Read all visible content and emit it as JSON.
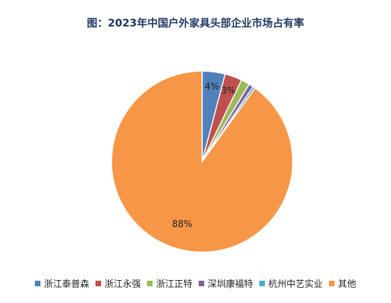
{
  "chart_data": {
    "type": "pie",
    "title": "图：2023年中国户外家具头部企业市场占有率",
    "slices": [
      {
        "label": "浙江泰普森",
        "value": 4,
        "color": "#4f81bd",
        "data_label": "4%"
      },
      {
        "label": "浙江永强",
        "value": 3,
        "color": "#c0504d",
        "data_label": "3%"
      },
      {
        "label": "浙江正特",
        "value": 1.5,
        "color": "#9bbb59",
        "data_label": ""
      },
      {
        "label": "深圳康福特",
        "value": 0.8,
        "color": "#8064a2",
        "data_label": ""
      },
      {
        "label": "杭州中艺实业",
        "value": 0.4,
        "color": "#4bacc6",
        "data_label": ""
      },
      {
        "label": "其他",
        "value": 88,
        "color": "#f79646",
        "data_label": "88%"
      }
    ],
    "legend_position": "bottom"
  }
}
